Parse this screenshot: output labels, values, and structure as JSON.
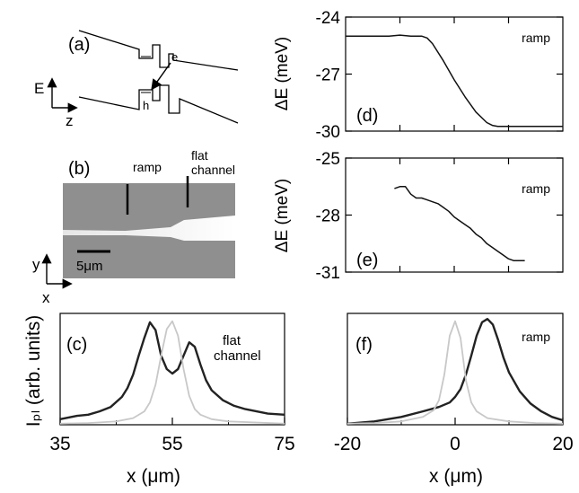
{
  "panel_labels": {
    "a": "(a)",
    "b": "(b)",
    "c": "(c)",
    "d": "(d)",
    "e": "(e)",
    "f": "(f)"
  },
  "band_diagram": {
    "energy_axis": "E",
    "position_axis": "z",
    "electron_label": "e",
    "hole_label": "h"
  },
  "micrograph": {
    "ramp_label": "ramp",
    "flat_label_line1": "flat",
    "flat_label_line2": "channel",
    "scale_bar_label": "5μm",
    "axis_y": "y",
    "axis_x": "x"
  },
  "bottom_axis": {
    "ylabel": "Iₚₗ (arb. units)"
  },
  "colors": {
    "main_trace": "#222222",
    "reference_trace": "#c8c8c8",
    "micrograph_bg": "#8f8f8f"
  },
  "chart_data": [
    {
      "id": "d",
      "type": "line",
      "annotation": "ramp",
      "ylabel": "ΔE  (meV)",
      "ylim": [
        -30,
        -24
      ],
      "yticks": [
        -24,
        -27,
        -30
      ],
      "ytick_labels": [
        "-24",
        "-27",
        "-30"
      ],
      "xlim": [
        -20,
        20
      ],
      "xtick_labels": [],
      "series": [
        {
          "x": [
            -20,
            -12,
            -10,
            -8,
            -6,
            -5,
            -4,
            -2,
            0,
            2,
            4,
            6,
            7,
            8,
            10,
            14,
            20
          ],
          "y": [
            -25.0,
            -25.0,
            -24.95,
            -25.0,
            -25.0,
            -25.1,
            -25.4,
            -26.3,
            -27.3,
            -28.2,
            -29.0,
            -29.55,
            -29.7,
            -29.75,
            -29.75,
            -29.75,
            -29.75
          ]
        }
      ]
    },
    {
      "id": "e",
      "type": "line",
      "annotation": "ramp",
      "ylabel": "ΔE  (meV)",
      "ylim": [
        -31,
        -25
      ],
      "yticks": [
        -25,
        -28,
        -31
      ],
      "ytick_labels": [
        "-25",
        "-28",
        "-31"
      ],
      "xlim": [
        -20,
        20
      ],
      "xtick_labels": [],
      "series": [
        {
          "x": [
            -11,
            -10,
            -9,
            -8,
            -7,
            -6,
            -5,
            -4,
            -3,
            -2,
            -1,
            0,
            1,
            2,
            3,
            4,
            5,
            6,
            7,
            8,
            9,
            10,
            11,
            12,
            13
          ],
          "y": [
            -26.6,
            -26.5,
            -26.5,
            -26.9,
            -27.1,
            -27.1,
            -27.2,
            -27.3,
            -27.4,
            -27.6,
            -27.8,
            -28.1,
            -28.3,
            -28.5,
            -28.7,
            -29.0,
            -29.2,
            -29.5,
            -29.7,
            -29.9,
            -30.1,
            -30.3,
            -30.4,
            -30.4,
            -30.4
          ]
        }
      ]
    },
    {
      "id": "c",
      "type": "line",
      "annotation_line1": "flat",
      "annotation_line2": "channel",
      "xlabel": "x (μm)",
      "xlim": [
        35,
        75
      ],
      "xticks": [
        35,
        55,
        75
      ],
      "xtick_labels": [
        "35",
        "55",
        "75"
      ],
      "minor_xticks": [
        45,
        65
      ],
      "ylim": [
        0,
        1.0
      ],
      "series": [
        {
          "name": "",
          "color_key": "main_trace",
          "x": [
            35,
            38,
            40,
            42,
            44,
            46,
            47,
            48,
            49,
            50,
            51,
            52,
            53,
            54,
            55,
            56,
            57,
            58,
            59,
            60,
            61,
            62,
            64,
            66,
            68,
            70,
            72,
            75
          ],
          "y": [
            0.05,
            0.08,
            0.09,
            0.12,
            0.16,
            0.25,
            0.33,
            0.45,
            0.62,
            0.78,
            0.92,
            0.85,
            0.62,
            0.5,
            0.46,
            0.5,
            0.62,
            0.74,
            0.7,
            0.54,
            0.4,
            0.31,
            0.22,
            0.17,
            0.14,
            0.12,
            0.1,
            0.09
          ]
        },
        {
          "name": "",
          "color_key": "reference_trace",
          "x": [
            35,
            40,
            45,
            48,
            50,
            51,
            52,
            53,
            54,
            55,
            56,
            57,
            58,
            59,
            60,
            62,
            65,
            70,
            75
          ],
          "y": [
            0.01,
            0.015,
            0.03,
            0.06,
            0.12,
            0.2,
            0.36,
            0.62,
            0.86,
            0.93,
            0.8,
            0.5,
            0.26,
            0.14,
            0.09,
            0.05,
            0.03,
            0.02,
            0.01
          ]
        }
      ]
    },
    {
      "id": "f",
      "type": "line",
      "annotation": "ramp",
      "xlabel": "x (μm)",
      "xlim": [
        -20,
        20
      ],
      "xticks": [
        -20,
        0,
        20
      ],
      "xtick_labels": [
        "-20",
        "0",
        "20"
      ],
      "minor_xticks": [
        -10,
        10
      ],
      "ylim": [
        0,
        1.0
      ],
      "series": [
        {
          "name": "",
          "color_key": "main_trace",
          "x": [
            -20,
            -15,
            -10,
            -6,
            -3,
            -1,
            0,
            1,
            2,
            3,
            4,
            5,
            6,
            7,
            8,
            9,
            10,
            12,
            14,
            16,
            18,
            20
          ],
          "y": [
            0.01,
            0.03,
            0.07,
            0.12,
            0.16,
            0.2,
            0.25,
            0.32,
            0.45,
            0.62,
            0.8,
            0.92,
            0.95,
            0.9,
            0.76,
            0.6,
            0.47,
            0.3,
            0.19,
            0.12,
            0.07,
            0.04
          ]
        },
        {
          "name": "",
          "color_key": "reference_trace",
          "x": [
            -20,
            -15,
            -10,
            -6,
            -4,
            -3,
            -2,
            -1,
            0,
            1,
            2,
            3,
            4,
            6,
            10,
            15,
            20
          ],
          "y": [
            0.01,
            0.015,
            0.03,
            0.07,
            0.13,
            0.22,
            0.45,
            0.8,
            0.93,
            0.78,
            0.4,
            0.2,
            0.12,
            0.06,
            0.03,
            0.015,
            0.01
          ]
        }
      ]
    }
  ]
}
